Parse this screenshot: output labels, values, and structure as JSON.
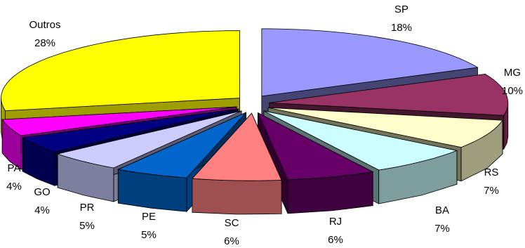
{
  "chart_data": {
    "type": "pie",
    "style": "3d-exploded",
    "title": "",
    "legend": "none",
    "label_format": "category and percent",
    "slices": [
      {
        "name": "SP",
        "value": 18,
        "label": "18%",
        "color": "#9999ff"
      },
      {
        "name": "MG",
        "value": 10,
        "label": "10%",
        "color": "#993366"
      },
      {
        "name": "RS",
        "value": 7,
        "label": "7%",
        "color": "#ffffcc"
      },
      {
        "name": "BA",
        "value": 7,
        "label": "7%",
        "color": "#ccffff"
      },
      {
        "name": "RJ",
        "value": 6,
        "label": "6%",
        "color": "#660066"
      },
      {
        "name": "SC",
        "value": 6,
        "label": "6%",
        "color": "#ff8080"
      },
      {
        "name": "PE",
        "value": 5,
        "label": "5%",
        "color": "#0066cc"
      },
      {
        "name": "PR",
        "value": 5,
        "label": "5%",
        "color": "#ccccff"
      },
      {
        "name": "GO",
        "value": 4,
        "label": "4%",
        "color": "#000080"
      },
      {
        "name": "PA",
        "value": 4,
        "label": "4%",
        "color": "#ff00ff"
      },
      {
        "name": "Outros",
        "value": 28,
        "label": "28%",
        "color": "#ffff00"
      }
    ]
  }
}
